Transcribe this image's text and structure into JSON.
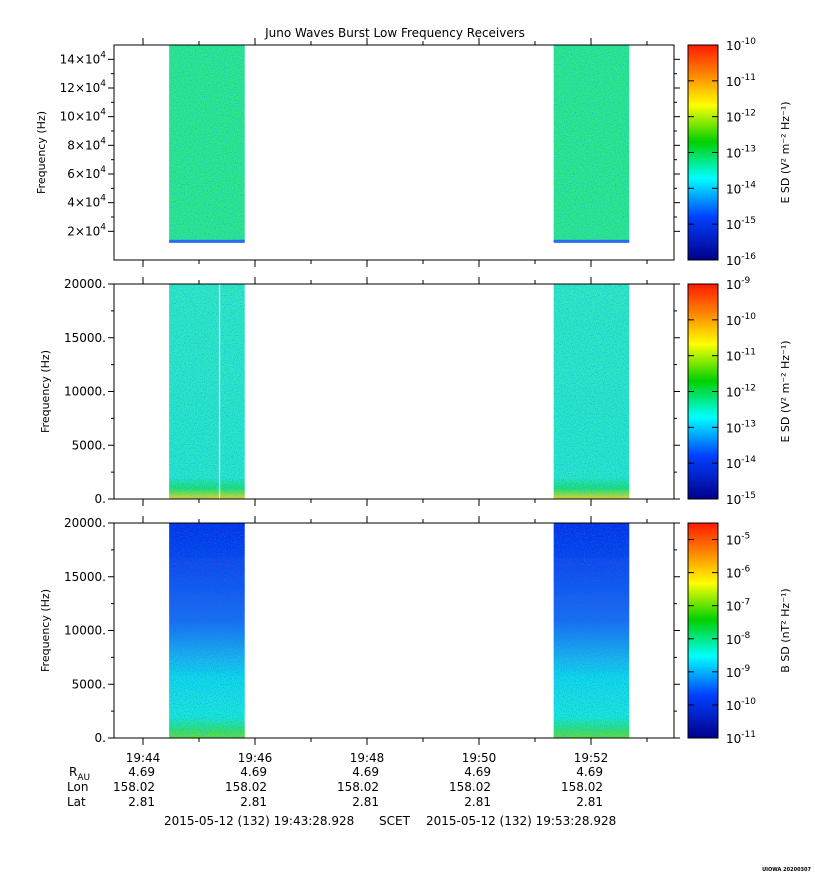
{
  "title": "Juno Waves Burst Low Frequency Receivers",
  "stamp": "UIOWA 20200307",
  "chart_data": [
    {
      "type": "heatmap",
      "name": "panel-1",
      "ylabel": "Frequency (Hz)",
      "ylim": [
        0,
        150000
      ],
      "yticks": [
        {
          "value": 20000,
          "mant": "2×10",
          "exp": "4"
        },
        {
          "value": 40000,
          "mant": "4×10",
          "exp": "4"
        },
        {
          "value": 60000,
          "mant": "6×10",
          "exp": "4"
        },
        {
          "value": 80000,
          "mant": "8×10",
          "exp": "4"
        },
        {
          "value": 100000,
          "mant": "10×10",
          "exp": "4"
        },
        {
          "value": 120000,
          "mant": "12×10",
          "exp": "4"
        },
        {
          "value": 140000,
          "mant": "14×10",
          "exp": "4"
        }
      ],
      "colorbar": {
        "label": "E SD (V² m⁻² Hz⁻¹)",
        "scale": "log",
        "range": [
          -16,
          -10
        ],
        "ticks": [
          {
            "value": -10,
            "exp": "-10"
          },
          {
            "value": -11,
            "exp": "-11"
          },
          {
            "value": -12,
            "exp": "-12"
          },
          {
            "value": -13,
            "exp": "-13"
          },
          {
            "value": -14,
            "exp": "-14"
          },
          {
            "value": -15,
            "exp": "-15"
          },
          {
            "value": -16,
            "exp": "-16"
          }
        ]
      },
      "data_blocks": [
        {
          "t_start": "19:44:28",
          "t_end": "19:45:49",
          "freq_start": 12000,
          "freq_end": 150000,
          "level": -13.5
        },
        {
          "t_start": "19:51:20",
          "t_end": "19:52:41",
          "freq_start": 12000,
          "freq_end": 150000,
          "level": -13.5
        }
      ]
    },
    {
      "type": "heatmap",
      "name": "panel-2",
      "ylabel": "Frequency (Hz)",
      "ylim": [
        0,
        20000
      ],
      "yticks": [
        {
          "value": 0,
          "label": "0."
        },
        {
          "value": 5000,
          "label": "5000."
        },
        {
          "value": 10000,
          "label": "10000."
        },
        {
          "value": 15000,
          "label": "15000."
        },
        {
          "value": 20000,
          "label": "20000."
        }
      ],
      "colorbar": {
        "label": "E SD (V² m⁻² Hz⁻¹)",
        "scale": "log",
        "range": [
          -15,
          -9
        ],
        "ticks": [
          {
            "value": -9,
            "exp": "-9"
          },
          {
            "value": -10,
            "exp": "-10"
          },
          {
            "value": -11,
            "exp": "-11"
          },
          {
            "value": -12,
            "exp": "-12"
          },
          {
            "value": -13,
            "exp": "-13"
          },
          {
            "value": -14,
            "exp": "-14"
          },
          {
            "value": -15,
            "exp": "-15"
          }
        ]
      },
      "data_blocks": [
        {
          "t_start": "19:44:28",
          "t_end": "19:45:49",
          "freq_start": 0,
          "freq_end": 20000,
          "level": -13.2
        },
        {
          "t_start": "19:51:20",
          "t_end": "19:52:41",
          "freq_start": 0,
          "freq_end": 20000,
          "level": -13.2
        }
      ]
    },
    {
      "type": "heatmap",
      "name": "panel-3",
      "ylabel": "Frequency (Hz)",
      "ylim": [
        0,
        20000
      ],
      "yticks": [
        {
          "value": 0,
          "label": "0."
        },
        {
          "value": 5000,
          "label": "5000."
        },
        {
          "value": 10000,
          "label": "10000."
        },
        {
          "value": 15000,
          "label": "15000."
        },
        {
          "value": 20000,
          "label": "20000."
        }
      ],
      "colorbar": {
        "label": "B SD (nT² Hz⁻¹)",
        "scale": "log",
        "range": [
          -11,
          -4.5
        ],
        "ticks": [
          {
            "value": -5,
            "exp": "-5"
          },
          {
            "value": -6,
            "exp": "-6"
          },
          {
            "value": -7,
            "exp": "-7"
          },
          {
            "value": -8,
            "exp": "-8"
          },
          {
            "value": -9,
            "exp": "-9"
          },
          {
            "value": -10,
            "exp": "-10"
          },
          {
            "value": -11,
            "exp": "-11"
          }
        ]
      },
      "data_blocks": [
        {
          "t_start": "19:44:28",
          "t_end": "19:45:49",
          "freq_start": 0,
          "freq_end": 20000,
          "level": -10.3
        },
        {
          "t_start": "19:51:20",
          "t_end": "19:52:41",
          "freq_start": 0,
          "freq_end": 20000,
          "level": -10.3
        }
      ]
    }
  ],
  "x_axis": {
    "start": "19:43:28.928",
    "end": "19:53:28.928",
    "ticks": [
      {
        "time": "19:44",
        "R": "4.69",
        "Lon": "158.02",
        "Lat": "2.81"
      },
      {
        "time": "19:46",
        "R": "4.69",
        "Lon": "158.02",
        "Lat": "2.81"
      },
      {
        "time": "19:48",
        "R": "4.69",
        "Lon": "158.02",
        "Lat": "2.81"
      },
      {
        "time": "19:50",
        "R": "4.69",
        "Lon": "158.02",
        "Lat": "2.81"
      },
      {
        "time": "19:52",
        "R": "4.69",
        "Lon": "158.02",
        "Lat": "2.81"
      }
    ],
    "row_labels": {
      "R": "R",
      "R_sub": "AU",
      "Lon": "Lon",
      "Lat": "Lat"
    },
    "footer_start": "2015-05-12 (132) 19:43:28.928",
    "footer_mid": "SCET",
    "footer_end": "2015-05-12 (132) 19:53:28.928"
  }
}
